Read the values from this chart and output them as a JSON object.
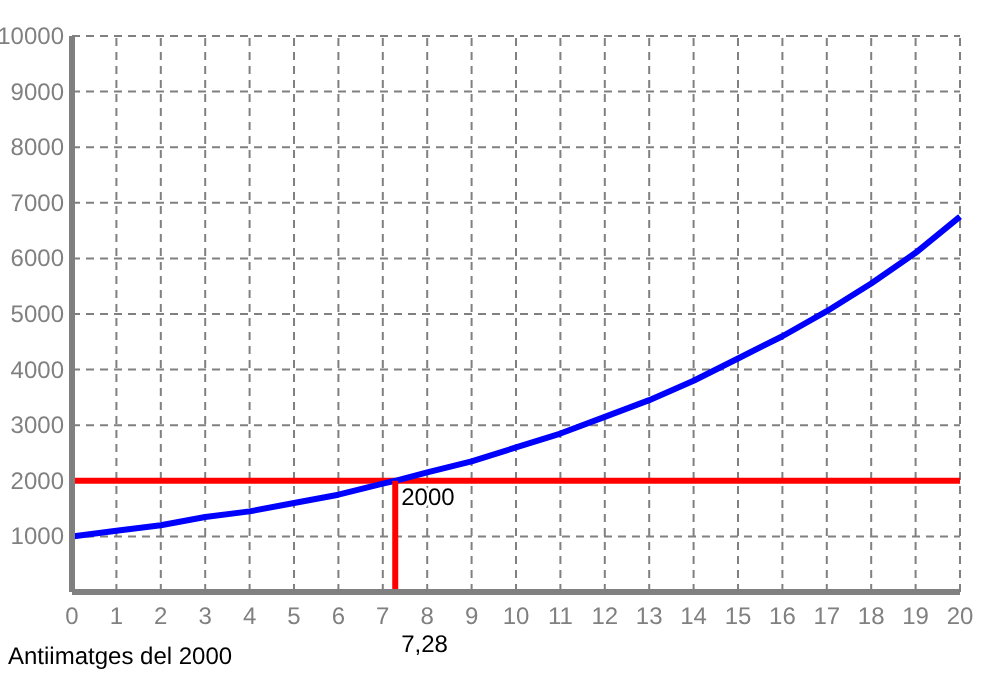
{
  "chart_data": {
    "type": "line",
    "x": [
      0,
      1,
      2,
      3,
      4,
      5,
      6,
      7,
      7.28,
      8,
      9,
      10,
      11,
      12,
      13,
      14,
      15,
      16,
      17,
      18,
      19,
      20
    ],
    "series": [
      {
        "color": "#0000ff",
        "values": [
          1000,
          1100,
          1200,
          1350,
          1450,
          1600,
          1750,
          1950,
          2000,
          2150,
          2350,
          2600,
          2850,
          3150,
          3450,
          3800,
          4200,
          4600,
          5050,
          5550,
          6100,
          6750
        ]
      },
      {
        "color": "#ff0000",
        "x": [
          7.28,
          7.28
        ],
        "values": [
          0,
          2000
        ]
      }
    ],
    "xlim": [
      0,
      20
    ],
    "xticks": [
      0,
      1,
      2,
      3,
      4,
      5,
      6,
      7,
      8,
      9,
      10,
      11,
      12,
      13,
      14,
      15,
      16,
      17,
      18,
      19,
      20
    ],
    "ylim": [
      0,
      10000
    ],
    "yticks": [
      {
        "value": 0,
        "label": null
      },
      1000,
      2000,
      3000,
      4000,
      5000,
      6000,
      7000,
      8000,
      9000,
      10000
    ],
    "grid": true,
    "line_style": "solid",
    "marker": "none",
    "ref_lines": [
      {
        "axis": "y",
        "value": 2000,
        "color": "#ff0000"
      }
    ],
    "annotations": [
      {
        "text": "2000",
        "x": 7.28,
        "y": 2000
      },
      {
        "text": "7,28",
        "x": 7.28,
        "y": 0
      },
      "Antiimatges del 2000"
    ]
  }
}
